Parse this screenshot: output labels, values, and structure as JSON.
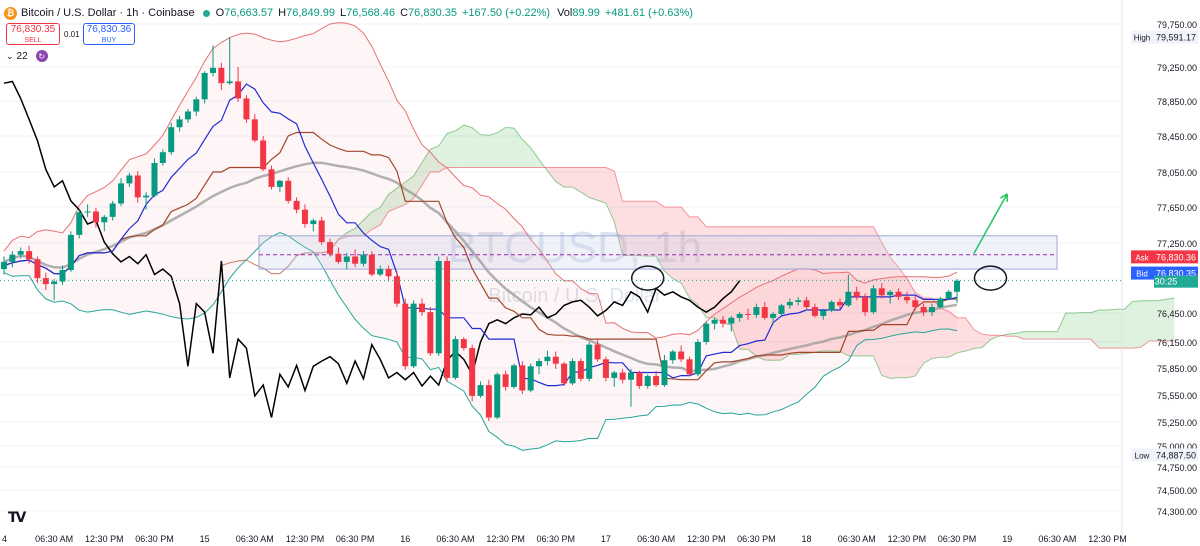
{
  "header": {
    "coin_icon": "bitcoin-icon",
    "symbol": "Bitcoin / U.S. Dollar · 1h · Coinbase",
    "status_color": "#22ab94",
    "open_label": "O",
    "open": "76,663.57",
    "high_label": "H",
    "high": "76,849.99",
    "low_label": "L",
    "low": "76,568.46",
    "close_label": "C",
    "close": "76,830.35",
    "change": "+167.50 (+0.22%)",
    "vol_label": "Vol",
    "vol": "89.99",
    "vol_change": "+481.61 (+0.63%)"
  },
  "trade": {
    "sell_price": "76,830.35",
    "sell_label": "SELL",
    "spread": "0.01",
    "buy_price": "76,830.36",
    "buy_label": "BUY"
  },
  "indicators": {
    "collapse_icon": "chevron-down-icon",
    "count": "22",
    "cycle_icon": "refresh-icon"
  },
  "watermark": {
    "title": "BTCUSD, 1h",
    "subtitle": "Bitcoin / U.S. Dollar"
  },
  "logo": "TV",
  "chart_data": {
    "type": "candlestick",
    "interval": "1h",
    "y_axis": {
      "range": [
        74300,
        80000
      ],
      "ticks": [
        "79,750.00",
        "79,250.00",
        "78,850.00",
        "78,450.00",
        "78,050.00",
        "77,650.00",
        "77,250.00",
        "76,850.00",
        "76,450.00",
        "76,150.00",
        "75,850.00",
        "75,550.00",
        "75,250.00",
        "75,000.00",
        "74,750.00",
        "74,500.00",
        "74,300.00"
      ],
      "tick_values": [
        79750,
        79250,
        78850,
        78450,
        78050,
        77650,
        77250,
        76850,
        76450,
        76150,
        75850,
        75550,
        75250,
        75000,
        74750,
        74500,
        74300
      ]
    },
    "x_axis": {
      "ticks": [
        "4",
        "06:30 AM",
        "12:30 PM",
        "06:30 PM",
        "15",
        "06:30 AM",
        "12:30 PM",
        "06:30 PM",
        "16",
        "06:30 AM",
        "12:30 PM",
        "06:30 PM",
        "17",
        "06:30 AM",
        "12:30 PM",
        "06:30 PM",
        "18",
        "06:30 AM",
        "12:30 PM",
        "06:30 PM",
        "19",
        "06:30 AM",
        "12:30 PM"
      ],
      "tick_index": [
        0,
        6,
        12,
        18,
        24,
        30,
        36,
        42,
        48,
        54,
        60,
        66,
        72,
        78,
        84,
        90,
        96,
        102,
        108,
        114,
        120,
        126,
        132
      ]
    },
    "markers": {
      "high_label": "High",
      "high_value": "79,591.17",
      "high_price": 79591.17,
      "low_label": "Low",
      "low_value": "74,887.50",
      "low_price": 74887.5,
      "ask_label": "Ask",
      "ask_value": "76,830.36",
      "ask_price": 76830.36,
      "ask_color": "#f23645",
      "bid_label": "Bid",
      "bid_value": "76,830.35",
      "bid_price": 76830.35,
      "bid_color": "#2962ff",
      "last_value": "76,830.35",
      "countdown": "30:25",
      "last_color": "#22ab94"
    },
    "candles_ohlc": [
      [
        76960,
        77100,
        76900,
        77040
      ],
      [
        77040,
        77160,
        76980,
        77120
      ],
      [
        77120,
        77200,
        77080,
        77160
      ],
      [
        77160,
        77220,
        77020,
        77070
      ],
      [
        77070,
        77100,
        76800,
        76860
      ],
      [
        76860,
        76920,
        76720,
        76790
      ],
      [
        76790,
        76850,
        76600,
        76820
      ],
      [
        76820,
        77000,
        76780,
        76950
      ],
      [
        76950,
        77380,
        76930,
        77340
      ],
      [
        77340,
        77620,
        77300,
        77590
      ],
      [
        77590,
        77680,
        77540,
        77600
      ],
      [
        77600,
        77640,
        77420,
        77480
      ],
      [
        77480,
        77560,
        77380,
        77540
      ],
      [
        77540,
        77720,
        77500,
        77690
      ],
      [
        77690,
        77980,
        77660,
        77920
      ],
      [
        77920,
        78040,
        77880,
        78010
      ],
      [
        78010,
        78060,
        77700,
        77760
      ],
      [
        77760,
        77820,
        77620,
        77780
      ],
      [
        77780,
        78200,
        77760,
        78150
      ],
      [
        78150,
        78300,
        78120,
        78270
      ],
      [
        78270,
        78600,
        78240,
        78550
      ],
      [
        78550,
        78680,
        78500,
        78640
      ],
      [
        78640,
        78760,
        78600,
        78730
      ],
      [
        78730,
        78900,
        78680,
        78870
      ],
      [
        78870,
        79200,
        78820,
        79180
      ],
      [
        79180,
        79500,
        79140,
        79240
      ],
      [
        79240,
        79300,
        78980,
        79060
      ],
      [
        79060,
        79600,
        79040,
        79080
      ],
      [
        79080,
        79250,
        78840,
        78880
      ],
      [
        78880,
        78920,
        78600,
        78640
      ],
      [
        78640,
        78700,
        78380,
        78400
      ],
      [
        78400,
        78450,
        78060,
        78080
      ],
      [
        78080,
        78120,
        77850,
        77880
      ],
      [
        77880,
        77960,
        77820,
        77950
      ],
      [
        77950,
        77990,
        77690,
        77720
      ],
      [
        77720,
        77760,
        77580,
        77620
      ],
      [
        77620,
        77680,
        77420,
        77460
      ],
      [
        77460,
        77520,
        77380,
        77500
      ],
      [
        77500,
        77540,
        77230,
        77260
      ],
      [
        77260,
        77300,
        77100,
        77130
      ],
      [
        77130,
        77200,
        77020,
        77040
      ],
      [
        77040,
        77140,
        76960,
        77100
      ],
      [
        77100,
        77180,
        76980,
        77020
      ],
      [
        77020,
        77160,
        76990,
        77120
      ],
      [
        77120,
        77160,
        76880,
        76900
      ],
      [
        76900,
        77000,
        76880,
        76960
      ],
      [
        76960,
        77000,
        76820,
        76880
      ],
      [
        76880,
        76940,
        76520,
        76560
      ],
      [
        76560,
        76620,
        75830,
        75870
      ],
      [
        75870,
        76600,
        75850,
        76560
      ],
      [
        76560,
        76620,
        76420,
        76460
      ],
      [
        76460,
        76520,
        75990,
        76020
      ],
      [
        76020,
        77100,
        75990,
        77050
      ],
      [
        77050,
        77100,
        75700,
        75740
      ],
      [
        75740,
        76210,
        75720,
        76180
      ],
      [
        76180,
        76200,
        76050,
        76080
      ],
      [
        76080,
        76120,
        75480,
        75540
      ],
      [
        75540,
        75700,
        75520,
        75660
      ],
      [
        75660,
        75720,
        75260,
        75300
      ],
      [
        75300,
        75800,
        75280,
        75780
      ],
      [
        75780,
        75820,
        75600,
        75640
      ],
      [
        75640,
        75900,
        75620,
        75880
      ],
      [
        75880,
        75930,
        75560,
        75600
      ],
      [
        75600,
        75900,
        75580,
        75870
      ],
      [
        75870,
        75960,
        75780,
        75930
      ],
      [
        75930,
        76050,
        75880,
        75980
      ],
      [
        75980,
        76040,
        75840,
        75900
      ],
      [
        75900,
        75920,
        75650,
        75680
      ],
      [
        75680,
        75960,
        75660,
        75930
      ],
      [
        75930,
        75960,
        75700,
        75730
      ],
      [
        75730,
        76150,
        75700,
        76120
      ],
      [
        76120,
        76180,
        75920,
        75950
      ],
      [
        75950,
        75980,
        75700,
        75740
      ],
      [
        75740,
        75820,
        75640,
        75800
      ],
      [
        75800,
        75840,
        75680,
        75720
      ],
      [
        75720,
        75840,
        75420,
        75800
      ],
      [
        75800,
        75820,
        75620,
        75650
      ],
      [
        75650,
        75780,
        75620,
        75760
      ],
      [
        75760,
        75820,
        75640,
        75660
      ],
      [
        75660,
        76000,
        75640,
        75940
      ],
      [
        75940,
        76060,
        75900,
        76040
      ],
      [
        76040,
        76110,
        75920,
        75950
      ],
      [
        75950,
        75980,
        75760,
        75780
      ],
      [
        75780,
        76180,
        75760,
        76150
      ],
      [
        76150,
        76360,
        76120,
        76340
      ],
      [
        76340,
        76400,
        76280,
        76380
      ],
      [
        76380,
        76420,
        76300,
        76340
      ],
      [
        76340,
        76420,
        76260,
        76400
      ],
      [
        76400,
        76460,
        76360,
        76440
      ],
      [
        76440,
        76500,
        76380,
        76430
      ],
      [
        76430,
        76560,
        76400,
        76520
      ],
      [
        76520,
        76580,
        76380,
        76400
      ],
      [
        76400,
        76460,
        76330,
        76440
      ],
      [
        76440,
        76560,
        76420,
        76540
      ],
      [
        76540,
        76620,
        76500,
        76580
      ],
      [
        76580,
        76640,
        76540,
        76600
      ],
      [
        76600,
        76640,
        76480,
        76520
      ],
      [
        76520,
        76560,
        76400,
        76420
      ],
      [
        76420,
        76500,
        76380,
        76480
      ],
      [
        76480,
        76600,
        76460,
        76580
      ],
      [
        76580,
        76620,
        76500,
        76540
      ],
      [
        76540,
        76900,
        76520,
        76700
      ],
      [
        76700,
        76760,
        76600,
        76640
      ],
      [
        76640,
        76680,
        76420,
        76460
      ],
      [
        76460,
        76780,
        76440,
        76740
      ],
      [
        76740,
        76800,
        76620,
        76660
      ],
      [
        76660,
        76720,
        76560,
        76700
      ],
      [
        76700,
        76740,
        76600,
        76640
      ],
      [
        76640,
        76700,
        76560,
        76600
      ],
      [
        76600,
        76650,
        76480,
        76520
      ],
      [
        76520,
        76560,
        76420,
        76460
      ],
      [
        76460,
        76560,
        76420,
        76520
      ],
      [
        76520,
        76640,
        76500,
        76620
      ],
      [
        76620,
        76720,
        76600,
        76700
      ],
      [
        76700,
        76850,
        76570,
        76830
      ]
    ],
    "lines": {
      "conversion_color": "#1e2bd6",
      "base_color": "#a0462c",
      "lagging_color": "#000000",
      "ma_color": "#9e9e9e",
      "bb_upper_color": "#e57373",
      "bb_lower_color": "#26a69a"
    },
    "zone": {
      "top": 77330,
      "bottom": 76960,
      "mid_dashed": 77120,
      "color": "#c5cae9"
    },
    "annotations": [
      {
        "type": "ellipse",
        "index": 77,
        "price": 76860
      },
      {
        "type": "ellipse",
        "index": 118,
        "price": 76860
      },
      {
        "type": "arrow",
        "from_index": 116,
        "from_price": 77130,
        "to_index": 120,
        "to_price": 77800,
        "color": "#22c55e"
      }
    ],
    "colors": {
      "up": "#089981",
      "down": "#f23645"
    }
  }
}
